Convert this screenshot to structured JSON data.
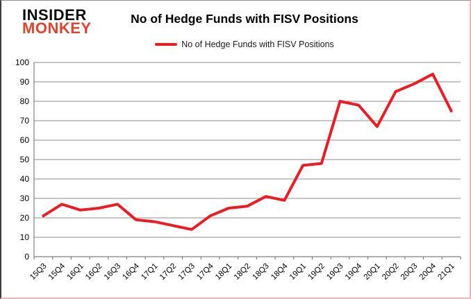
{
  "logo": {
    "line1": "INSIDER",
    "line2": "MONKEY"
  },
  "header": {
    "title": "No of Hedge Funds with FISV Positions"
  },
  "legend": {
    "label": "No of Hedge Funds with FISV Positions"
  },
  "colors": {
    "line": "#ed1c24",
    "grid": "#8c8c8c",
    "axis": "#7f7f7f",
    "label": "#000000",
    "logo_monkey": "#e2432c"
  },
  "chart_data": {
    "type": "line",
    "title": "No of Hedge Funds with FISV Positions",
    "xlabel": "",
    "ylabel": "",
    "categories": [
      "15Q3",
      "15Q4",
      "16Q1",
      "16Q2",
      "16Q3",
      "16Q4",
      "17Q1",
      "17Q2",
      "17Q3",
      "17Q4",
      "18Q1",
      "18Q2",
      "18Q3",
      "18Q4",
      "19Q1",
      "19Q2",
      "19Q3",
      "19Q4",
      "20Q1",
      "20Q2",
      "20Q3",
      "20Q4",
      "21Q1"
    ],
    "series": [
      {
        "name": "No of Hedge Funds with FISV Positions",
        "color": "#ed1c24",
        "values": [
          21,
          27,
          24,
          25,
          27,
          19,
          18,
          16,
          14,
          21,
          25,
          26,
          31,
          29,
          47,
          48,
          80,
          78,
          67,
          85,
          89,
          94,
          75
        ]
      }
    ],
    "ylim": [
      0,
      100
    ],
    "ytick_step": 10,
    "grid": "horizontal",
    "legend_position": "top-center"
  }
}
